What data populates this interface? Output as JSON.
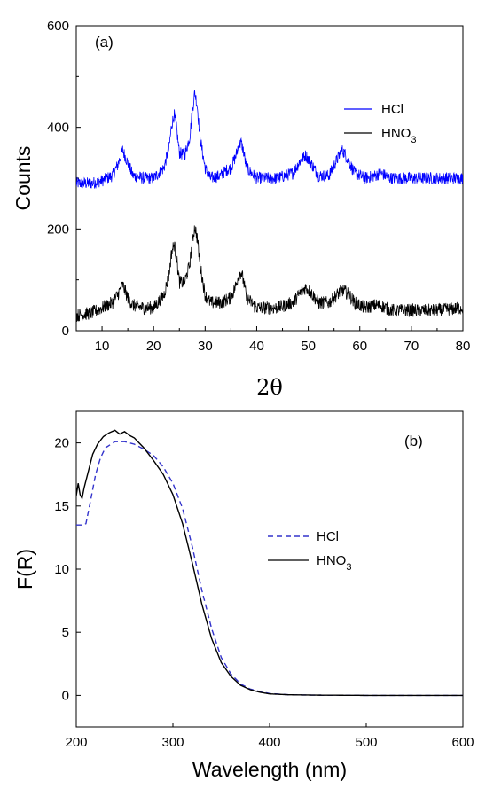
{
  "chart_data": [
    {
      "type": "line",
      "panel_label": "(a)",
      "xlabel": "2θ",
      "ylabel": "Counts",
      "xlim": [
        5,
        80
      ],
      "ylim": [
        0,
        600
      ],
      "x_ticks": [
        10,
        20,
        30,
        40,
        50,
        60,
        70,
        80
      ],
      "y_ticks": [
        0,
        200,
        400,
        600
      ],
      "legend_position": "top-right",
      "series": [
        {
          "name": "HCl",
          "color": "#0000ff",
          "noise": 12,
          "x": [
            5,
            8,
            10,
            12,
            13,
            14,
            15,
            16,
            18,
            20,
            22,
            23,
            23.5,
            24,
            24.5,
            25,
            26,
            27,
            27.5,
            28,
            28.5,
            29,
            30,
            31,
            33,
            34,
            35,
            36,
            36.5,
            37,
            37.5,
            38,
            40,
            44,
            47,
            48.5,
            49.5,
            50.5,
            52,
            54,
            55,
            56,
            56.5,
            57,
            58,
            59,
            61,
            63,
            64,
            66,
            70,
            75,
            80
          ],
          "y": [
            290,
            290,
            295,
            305,
            325,
            355,
            330,
            305,
            300,
            300,
            320,
            360,
            405,
            425,
            395,
            350,
            345,
            380,
            430,
            470,
            440,
            380,
            320,
            300,
            305,
            315,
            320,
            345,
            365,
            370,
            350,
            320,
            300,
            300,
            310,
            335,
            345,
            330,
            305,
            305,
            325,
            345,
            355,
            350,
            330,
            310,
            300,
            305,
            310,
            300,
            300,
            300,
            300
          ]
        },
        {
          "name": "HNO3",
          "color": "#000000",
          "noise": 13,
          "x": [
            5,
            8,
            10,
            12,
            13,
            14,
            15,
            16,
            18,
            20,
            22,
            23,
            23.5,
            24,
            24.5,
            25,
            26,
            27,
            27.5,
            28,
            28.5,
            29,
            30,
            31,
            33,
            34,
            35,
            36,
            36.5,
            37,
            37.5,
            38,
            40,
            44,
            47,
            48.5,
            49.5,
            50.5,
            52,
            54,
            55,
            56,
            56.5,
            57,
            58,
            59,
            61,
            63,
            64,
            66,
            70,
            75,
            80
          ],
          "y": [
            30,
            35,
            45,
            55,
            70,
            90,
            65,
            50,
            45,
            45,
            70,
            110,
            155,
            170,
            140,
            95,
            95,
            130,
            175,
            205,
            180,
            130,
            70,
            55,
            55,
            60,
            65,
            90,
            110,
            115,
            95,
            65,
            45,
            45,
            55,
            75,
            85,
            75,
            55,
            55,
            65,
            75,
            80,
            78,
            70,
            55,
            45,
            50,
            50,
            40,
            40,
            40,
            45
          ]
        }
      ]
    },
    {
      "type": "line",
      "panel_label": "(b)",
      "xlabel": "Wavelength (nm)",
      "ylabel": "F(R)",
      "xlim": [
        200,
        600
      ],
      "ylim": [
        -2.5,
        22.5
      ],
      "x_ticks": [
        200,
        300,
        400,
        500,
        600
      ],
      "y_ticks": [
        0,
        5,
        10,
        15,
        20
      ],
      "legend_position": "center-right",
      "series": [
        {
          "name": "HCl",
          "color": "#3333cc",
          "dash": "dashed",
          "x": [
            200,
            205,
            210,
            215,
            220,
            225,
            230,
            240,
            250,
            260,
            270,
            280,
            290,
            300,
            310,
            320,
            330,
            340,
            350,
            360,
            370,
            380,
            390,
            400,
            420,
            450,
            500,
            550,
            600
          ],
          "y": [
            13.5,
            13.5,
            13.6,
            15.5,
            17.5,
            18.8,
            19.6,
            20.1,
            20.1,
            19.9,
            19.5,
            19.0,
            18.1,
            16.8,
            14.8,
            11.8,
            8.3,
            5.3,
            3.0,
            1.7,
            0.9,
            0.5,
            0.3,
            0.15,
            0.05,
            0.02,
            0.0,
            0.0,
            0.0
          ]
        },
        {
          "name": "HNO3",
          "color": "#000000",
          "dash": "solid",
          "x": [
            200,
            202,
            204,
            206,
            208,
            210,
            213,
            217,
            222,
            228,
            234,
            240,
            245,
            250,
            255,
            260,
            270,
            280,
            290,
            300,
            310,
            320,
            330,
            340,
            350,
            360,
            370,
            380,
            390,
            400,
            420,
            450,
            500,
            550,
            600
          ],
          "y": [
            15.8,
            16.8,
            15.9,
            15.6,
            16.4,
            17.0,
            17.9,
            19.1,
            19.9,
            20.5,
            20.8,
            21.0,
            20.7,
            20.9,
            20.6,
            20.4,
            19.6,
            18.6,
            17.5,
            15.9,
            13.6,
            10.5,
            7.2,
            4.5,
            2.6,
            1.5,
            0.8,
            0.45,
            0.25,
            0.12,
            0.05,
            0.02,
            0.0,
            0.0,
            0.0
          ]
        }
      ]
    }
  ]
}
